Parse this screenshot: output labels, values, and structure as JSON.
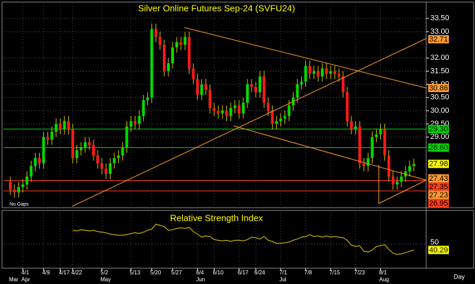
{
  "chart_data": {
    "type": "candlestick",
    "title": "Silver Online Futures Sep-24 (SVFU24)",
    "note": "No Gaps",
    "period": "Day",
    "categories": [
      null,
      null,
      null,
      "4/1",
      null,
      null,
      null,
      null,
      "4/9",
      null,
      null,
      null,
      "4/17",
      null,
      null,
      "4/22",
      null,
      null,
      null,
      null,
      null,
      null,
      "5/2",
      null,
      null,
      null,
      null,
      null,
      null,
      "5/13",
      null,
      null,
      null,
      null,
      "5/20",
      null,
      null,
      null,
      null,
      "5/27",
      null,
      null,
      null,
      null,
      null,
      "6/4",
      null,
      null,
      null,
      "6/10",
      null,
      null,
      null,
      null,
      null,
      "6/17",
      null,
      null,
      null,
      "6/24",
      null,
      null,
      null,
      null,
      null,
      "7/1",
      null,
      null,
      null,
      null,
      null,
      "7/8",
      null,
      null,
      null,
      null,
      null,
      "7/15",
      null,
      null,
      null,
      null,
      null,
      "7/23",
      null,
      null,
      null,
      null,
      null,
      "8/1",
      null,
      null,
      null,
      null,
      null,
      null,
      null,
      null
    ],
    "months": [
      "Mar",
      null,
      null,
      "Apr",
      null,
      null,
      null,
      null,
      null,
      null,
      null,
      null,
      null,
      null,
      null,
      null,
      null,
      null,
      null,
      null,
      null,
      null,
      "May",
      null,
      null,
      null,
      null,
      null,
      null,
      null,
      null,
      null,
      null,
      null,
      null,
      null,
      null,
      null,
      null,
      null,
      null,
      null,
      null,
      null,
      null,
      "Jun",
      null,
      null,
      null,
      null,
      null,
      null,
      null,
      null,
      null,
      null,
      null,
      null,
      null,
      null,
      null,
      null,
      null,
      null,
      null,
      "Jul",
      null,
      null,
      null,
      null,
      null,
      null,
      null,
      null,
      null,
      null,
      null,
      null,
      null,
      null,
      null,
      null,
      null,
      null,
      null,
      null,
      null,
      null,
      null,
      "Aug",
      null,
      null,
      null,
      null,
      null,
      null,
      null,
      null
    ],
    "open": [
      27.3,
      27.0,
      26.9,
      27.1,
      27.2,
      27.5,
      27.9,
      28.2,
      28.0,
      29.0,
      28.9,
      29.2,
      29.5,
      29.3,
      29.6,
      29.3,
      28.2,
      28.5,
      28.6,
      28.8,
      28.7,
      28.3,
      28.0,
      27.8,
      27.6,
      28.0,
      28.2,
      28.3,
      28.6,
      29.4,
      29.6,
      29.5,
      29.8,
      30.4,
      30.5,
      33.1,
      32.8,
      32.5,
      31.5,
      31.8,
      32.4,
      32.6,
      32.5,
      32.8,
      31.6,
      31.2,
      30.6,
      31.0,
      30.8,
      30.1,
      30.0,
      29.9,
      30.0,
      29.8,
      30.1,
      30.2,
      29.9,
      30.3,
      31.0,
      30.9,
      30.7,
      31.3,
      30.3,
      30.0,
      29.5,
      29.6,
      29.7,
      29.8,
      30.2,
      30.5,
      31.0,
      31.1,
      31.7,
      31.4,
      31.5,
      31.3,
      31.6,
      31.4,
      31.5,
      31.4,
      31.3,
      30.7,
      29.6,
      29.3,
      29.4,
      28.0,
      27.9,
      28.2,
      29.0,
      29.1,
      29.3,
      28.3,
      27.5,
      27.2,
      27.3,
      27.5,
      27.7,
      27.9
    ],
    "high": [
      27.5,
      27.2,
      27.3,
      27.4,
      27.7,
      28.1,
      28.4,
      28.4,
      29.2,
      29.2,
      29.4,
      29.7,
      29.7,
      29.8,
      29.8,
      29.5,
      28.7,
      28.8,
      29.0,
      29.0,
      28.9,
      28.5,
      28.2,
      28.0,
      28.2,
      28.4,
      28.5,
      28.8,
      29.6,
      29.8,
      29.8,
      30.0,
      30.6,
      30.7,
      33.3,
      33.3,
      33.0,
      32.7,
      32.0,
      32.6,
      32.8,
      32.8,
      33.0,
      33.0,
      31.8,
      31.4,
      31.2,
      31.2,
      31.0,
      30.3,
      30.2,
      30.2,
      30.2,
      30.3,
      30.4,
      30.4,
      30.5,
      31.2,
      31.2,
      31.1,
      31.5,
      31.5,
      30.5,
      30.2,
      29.8,
      29.9,
      30.0,
      30.4,
      30.7,
      31.2,
      31.3,
      31.9,
      31.9,
      31.7,
      31.7,
      31.8,
      31.8,
      31.7,
      31.7,
      31.6,
      31.5,
      30.9,
      29.8,
      29.6,
      29.6,
      28.2,
      28.4,
      29.2,
      29.3,
      29.5,
      29.5,
      28.5,
      27.7,
      27.5,
      27.7,
      27.9,
      28.1,
      28.18
    ],
    "low": [
      26.8,
      26.7,
      26.7,
      26.9,
      27.0,
      27.3,
      27.7,
      27.8,
      27.8,
      28.7,
      28.7,
      29.0,
      29.1,
      29.1,
      29.1,
      28.0,
      28.0,
      28.3,
      28.4,
      28.5,
      28.1,
      27.8,
      27.6,
      27.4,
      27.4,
      27.8,
      28.0,
      28.1,
      28.4,
      29.2,
      29.3,
      29.3,
      29.6,
      30.2,
      30.3,
      32.6,
      32.3,
      31.3,
      31.3,
      31.6,
      32.2,
      32.3,
      32.3,
      31.4,
      31.0,
      30.4,
      30.4,
      30.6,
      29.9,
      29.8,
      29.7,
      29.7,
      29.6,
      29.6,
      29.9,
      29.7,
      29.7,
      30.1,
      30.7,
      30.5,
      30.5,
      30.1,
      29.8,
      29.3,
      29.3,
      29.4,
      29.5,
      29.6,
      30.0,
      30.3,
      30.8,
      30.9,
      31.2,
      31.2,
      31.1,
      31.1,
      31.2,
      31.2,
      31.2,
      31.1,
      30.5,
      29.4,
      29.1,
      29.1,
      27.8,
      27.7,
      27.7,
      28.0,
      28.8,
      28.9,
      28.1,
      27.3,
      27.0,
      27.0,
      27.1,
      27.3,
      27.5,
      27.7
    ],
    "close": [
      27.0,
      26.9,
      27.1,
      27.2,
      27.5,
      27.9,
      28.2,
      28.0,
      29.0,
      28.9,
      29.2,
      29.5,
      29.3,
      29.6,
      29.3,
      28.2,
      28.5,
      28.6,
      28.8,
      28.7,
      28.3,
      28.0,
      27.8,
      27.6,
      28.0,
      28.2,
      28.3,
      28.6,
      29.4,
      29.6,
      29.5,
      29.8,
      30.4,
      30.5,
      33.1,
      32.8,
      32.5,
      31.5,
      31.8,
      32.4,
      32.6,
      32.5,
      32.8,
      31.6,
      31.2,
      30.6,
      31.0,
      30.8,
      30.1,
      30.0,
      29.9,
      30.0,
      29.8,
      30.1,
      30.2,
      29.9,
      30.3,
      31.0,
      30.9,
      30.7,
      31.3,
      30.3,
      30.0,
      29.5,
      29.6,
      29.7,
      29.8,
      30.2,
      30.5,
      31.0,
      31.1,
      31.7,
      31.4,
      31.5,
      31.3,
      31.6,
      31.4,
      31.5,
      31.4,
      31.3,
      30.7,
      29.6,
      29.3,
      29.4,
      28.0,
      27.9,
      28.2,
      29.0,
      29.1,
      29.3,
      28.3,
      27.5,
      27.2,
      27.3,
      27.5,
      27.7,
      27.9,
      27.98
    ],
    "up_color": "#00dd00",
    "down_color": "#ff1a1a",
    "wick_color": "#d4c400",
    "last_color": "#ffff00",
    "ylim": [
      26.37,
      34.07
    ],
    "yticks": [
      {
        "value": 33.5,
        "label": "33.50"
      },
      {
        "value": 33,
        "label": "33.00"
      },
      {
        "value": 32,
        "label": "32.00"
      },
      {
        "value": 31.5,
        "label": "31.50"
      },
      {
        "value": 31,
        "label": "31.00"
      },
      {
        "value": 30.5,
        "label": "30.50"
      },
      {
        "value": 30,
        "label": "30.00"
      },
      {
        "value": 29.5,
        "label": "29.50"
      },
      {
        "value": 29,
        "label": "29.00"
      }
    ],
    "grid": true,
    "price_labels": [
      {
        "value": 32.71,
        "color": "#ff9a2e",
        "line": false
      },
      {
        "value": 30.86,
        "color": "#ff9a2e",
        "line": false
      },
      {
        "value": 29.3,
        "label": "29.30",
        "color": "#00dd00",
        "line": true
      },
      {
        "value": 28.6,
        "label": "28.60",
        "color": "#00dd00",
        "line": true
      },
      {
        "value": 27.43,
        "color": "#ff9a2e",
        "line": false
      },
      {
        "value": 27.35,
        "color": "#ff3b1a",
        "line": true
      },
      {
        "value": 27.23,
        "color": "#ff9a2e",
        "line": false
      },
      {
        "value": 26.95,
        "color": "#ff3b1a",
        "line": true
      }
    ],
    "indicator": {
      "type": "line",
      "title": "Relative Strength Index",
      "color": "#e6d200",
      "ylim": [
        13,
        102
      ],
      "yticks": [
        50
      ],
      "values": [
        null,
        null,
        null,
        null,
        null,
        null,
        null,
        null,
        null,
        null,
        null,
        null,
        null,
        null,
        null,
        72,
        71,
        73,
        72,
        71,
        72,
        70,
        69,
        68,
        66,
        65,
        64,
        64,
        65,
        67,
        68,
        67,
        69,
        72,
        74,
        82,
        80,
        78,
        72,
        73,
        75,
        76,
        75,
        77,
        70,
        66,
        61,
        63,
        62,
        57,
        56,
        55,
        56,
        54,
        56,
        56,
        55,
        57,
        61,
        60,
        58,
        62,
        56,
        54,
        51,
        51,
        52,
        53,
        56,
        58,
        61,
        62,
        65,
        62,
        63,
        61,
        63,
        61,
        62,
        61,
        60,
        56,
        48,
        46,
        47,
        38,
        37,
        40,
        46,
        47,
        49,
        41,
        35,
        33,
        34,
        36,
        38,
        40.29
      ]
    }
  }
}
